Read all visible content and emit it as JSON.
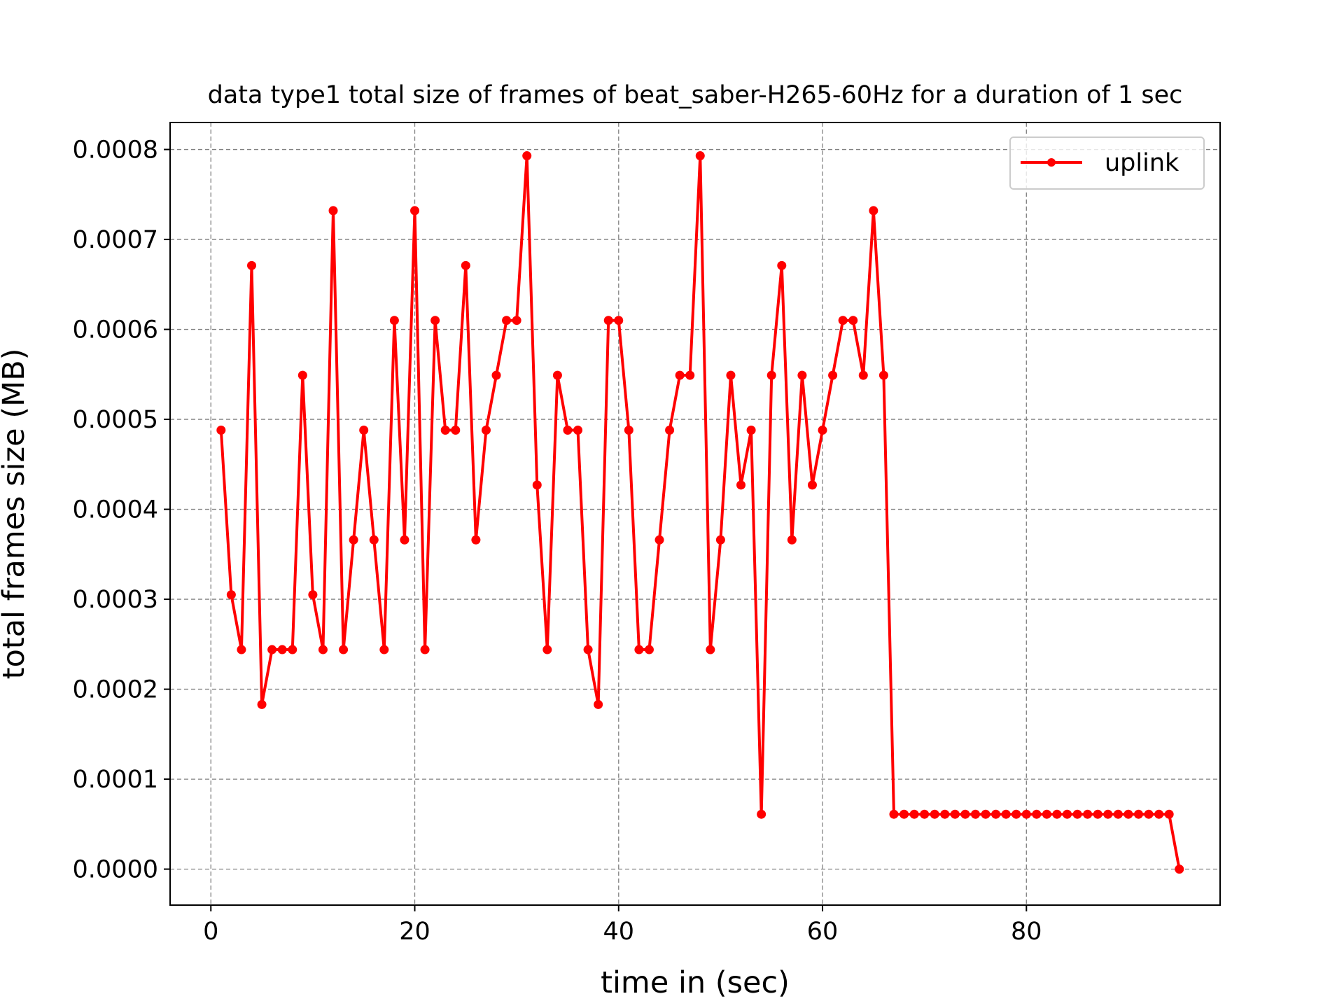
{
  "chart_data": {
    "type": "line",
    "title": "data type1 total size of frames of beat_saber-H265-60Hz for a duration of 1 sec",
    "xlabel": "time in (sec)",
    "ylabel": "total frames size (MB)",
    "xlim": [
      -4,
      99
    ],
    "ylim": [
      -4e-05,
      0.00083
    ],
    "xticks": [
      0,
      20,
      40,
      60,
      80
    ],
    "xtick_labels": [
      "0",
      "20",
      "40",
      "60",
      "80"
    ],
    "yticks": [
      0,
      0.0001,
      0.0002,
      0.0003,
      0.0004,
      0.0005,
      0.0006,
      0.0007,
      0.0008
    ],
    "ytick_labels": [
      "0.0000",
      "0.0001",
      "0.0002",
      "0.0003",
      "0.0004",
      "0.0005",
      "0.0006",
      "0.0007",
      "0.0008"
    ],
    "grid": true,
    "legend": {
      "position": "top-right"
    },
    "series": [
      {
        "name": "uplink",
        "color": "#ff0000",
        "marker": "circle",
        "x": [
          1,
          2,
          3,
          4,
          5,
          6,
          7,
          8,
          9,
          10,
          11,
          12,
          13,
          14,
          15,
          16,
          17,
          18,
          19,
          20,
          21,
          22,
          23,
          24,
          25,
          26,
          27,
          28,
          29,
          30,
          31,
          32,
          33,
          34,
          35,
          36,
          37,
          38,
          39,
          40,
          41,
          42,
          43,
          44,
          45,
          46,
          47,
          48,
          49,
          50,
          51,
          52,
          53,
          54,
          55,
          56,
          57,
          58,
          59,
          60,
          61,
          62,
          63,
          64,
          65,
          66,
          67,
          68,
          69,
          70,
          71,
          72,
          73,
          74,
          75,
          76,
          77,
          78,
          79,
          80,
          81,
          82,
          83,
          84,
          85,
          86,
          87,
          88,
          89,
          90,
          91,
          92,
          93,
          94,
          95
        ],
        "y": [
          0.000488,
          0.000305,
          0.000244,
          0.000671,
          0.000183,
          0.000244,
          0.000244,
          0.000244,
          0.000549,
          0.000305,
          0.000244,
          0.000732,
          0.000244,
          0.000366,
          0.000488,
          0.000366,
          0.000244,
          0.00061,
          0.000366,
          0.000732,
          0.000244,
          0.00061,
          0.000488,
          0.000488,
          0.000671,
          0.000366,
          0.000488,
          0.000549,
          0.00061,
          0.00061,
          0.000793,
          0.000427,
          0.000244,
          0.000549,
          0.000488,
          0.000488,
          0.000244,
          0.000183,
          0.00061,
          0.00061,
          0.000488,
          0.000244,
          0.000244,
          0.000366,
          0.000488,
          0.000549,
          0.000549,
          0.000793,
          0.000244,
          0.000366,
          0.000549,
          0.000427,
          0.000488,
          6.1e-05,
          0.000549,
          0.000671,
          0.000366,
          0.000549,
          0.000427,
          0.000488,
          0.000549,
          0.00061,
          0.00061,
          0.000549,
          0.000732,
          0.000549,
          6.1e-05,
          6.1e-05,
          6.1e-05,
          6.1e-05,
          6.1e-05,
          6.1e-05,
          6.1e-05,
          6.1e-05,
          6.1e-05,
          6.1e-05,
          6.1e-05,
          6.1e-05,
          6.1e-05,
          6.1e-05,
          6.1e-05,
          6.1e-05,
          6.1e-05,
          6.1e-05,
          6.1e-05,
          6.1e-05,
          6.1e-05,
          6.1e-05,
          6.1e-05,
          6.1e-05,
          6.1e-05,
          6.1e-05,
          6.1e-05,
          6.1e-05,
          0
        ]
      }
    ]
  }
}
